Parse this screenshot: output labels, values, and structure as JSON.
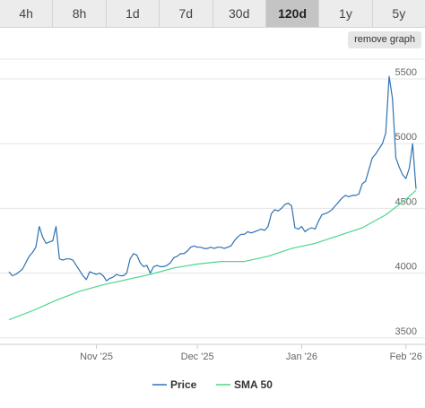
{
  "tabs": [
    {
      "label": "4h",
      "active": false
    },
    {
      "label": "8h",
      "active": false
    },
    {
      "label": "1d",
      "active": false
    },
    {
      "label": "7d",
      "active": false
    },
    {
      "label": "30d",
      "active": false
    },
    {
      "label": "120d",
      "active": true
    },
    {
      "label": "1y",
      "active": false
    },
    {
      "label": "5y",
      "active": false
    }
  ],
  "remove_graph_label": "remove graph",
  "colors": {
    "price": "#2f72b3",
    "sma": "#4cd68a",
    "grid": "#e6e6e6",
    "active_tab": "#c4c4c4"
  },
  "chart_data": {
    "type": "line",
    "title": "",
    "xlabel": "",
    "ylabel": "",
    "ylim": [
      3450,
      5680
    ],
    "xlim": [
      "2025-10-06",
      "2026-02-04"
    ],
    "yticks": [
      3500,
      4000,
      4500,
      5000,
      5500
    ],
    "ytick_labels": [
      "3500",
      "4000",
      "4500",
      "5000",
      "5500"
    ],
    "xticks": [
      "2025-11-01",
      "2025-12-01",
      "2026-01-01",
      "2026-02-01"
    ],
    "xtick_labels": [
      "Nov '25",
      "Dec '25",
      "Jan '26",
      "Feb '26"
    ],
    "grid": "horizontal",
    "legend_position": "bottom",
    "series": [
      {
        "name": "Price",
        "points": [
          [
            "2025-10-06",
            4010
          ],
          [
            "2025-10-07",
            3980
          ],
          [
            "2025-10-08",
            3990
          ],
          [
            "2025-10-09",
            4010
          ],
          [
            "2025-10-10",
            4030
          ],
          [
            "2025-10-11",
            4080
          ],
          [
            "2025-10-12",
            4130
          ],
          [
            "2025-10-13",
            4160
          ],
          [
            "2025-10-14",
            4200
          ],
          [
            "2025-10-15",
            4360
          ],
          [
            "2025-10-16",
            4280
          ],
          [
            "2025-10-17",
            4230
          ],
          [
            "2025-10-18",
            4240
          ],
          [
            "2025-10-19",
            4250
          ],
          [
            "2025-10-20",
            4360
          ],
          [
            "2025-10-21",
            4110
          ],
          [
            "2025-10-22",
            4100
          ],
          [
            "2025-10-23",
            4110
          ],
          [
            "2025-10-24",
            4110
          ],
          [
            "2025-10-25",
            4100
          ],
          [
            "2025-10-26",
            4060
          ],
          [
            "2025-10-27",
            4020
          ],
          [
            "2025-10-28",
            3980
          ],
          [
            "2025-10-29",
            3950
          ],
          [
            "2025-10-30",
            4010
          ],
          [
            "2025-10-31",
            4000
          ],
          [
            "2025-11-01",
            3990
          ],
          [
            "2025-11-02",
            4000
          ],
          [
            "2025-11-03",
            3980
          ],
          [
            "2025-11-04",
            3940
          ],
          [
            "2025-11-05",
            3960
          ],
          [
            "2025-11-06",
            3970
          ],
          [
            "2025-11-07",
            3990
          ],
          [
            "2025-11-08",
            3980
          ],
          [
            "2025-11-09",
            3980
          ],
          [
            "2025-11-10",
            4000
          ],
          [
            "2025-11-11",
            4110
          ],
          [
            "2025-11-12",
            4150
          ],
          [
            "2025-11-13",
            4140
          ],
          [
            "2025-11-14",
            4080
          ],
          [
            "2025-11-15",
            4050
          ],
          [
            "2025-11-16",
            4060
          ],
          [
            "2025-11-17",
            4000
          ],
          [
            "2025-11-18",
            4050
          ],
          [
            "2025-11-19",
            4060
          ],
          [
            "2025-11-20",
            4050
          ],
          [
            "2025-11-21",
            4050
          ],
          [
            "2025-11-22",
            4060
          ],
          [
            "2025-11-23",
            4080
          ],
          [
            "2025-11-24",
            4120
          ],
          [
            "2025-11-25",
            4130
          ],
          [
            "2025-11-26",
            4150
          ],
          [
            "2025-11-27",
            4150
          ],
          [
            "2025-11-28",
            4170
          ],
          [
            "2025-11-29",
            4200
          ],
          [
            "2025-11-30",
            4210
          ],
          [
            "2025-12-01",
            4200
          ],
          [
            "2025-12-02",
            4200
          ],
          [
            "2025-12-03",
            4190
          ],
          [
            "2025-12-04",
            4190
          ],
          [
            "2025-12-05",
            4200
          ],
          [
            "2025-12-06",
            4190
          ],
          [
            "2025-12-07",
            4200
          ],
          [
            "2025-12-08",
            4200
          ],
          [
            "2025-12-09",
            4190
          ],
          [
            "2025-12-10",
            4200
          ],
          [
            "2025-12-11",
            4210
          ],
          [
            "2025-12-12",
            4250
          ],
          [
            "2025-12-13",
            4280
          ],
          [
            "2025-12-14",
            4300
          ],
          [
            "2025-12-15",
            4300
          ],
          [
            "2025-12-16",
            4320
          ],
          [
            "2025-12-17",
            4310
          ],
          [
            "2025-12-18",
            4320
          ],
          [
            "2025-12-19",
            4330
          ],
          [
            "2025-12-20",
            4340
          ],
          [
            "2025-12-21",
            4330
          ],
          [
            "2025-12-22",
            4360
          ],
          [
            "2025-12-23",
            4460
          ],
          [
            "2025-12-24",
            4490
          ],
          [
            "2025-12-25",
            4480
          ],
          [
            "2025-12-26",
            4500
          ],
          [
            "2025-12-27",
            4530
          ],
          [
            "2025-12-28",
            4540
          ],
          [
            "2025-12-29",
            4520
          ],
          [
            "2025-12-30",
            4350
          ],
          [
            "2025-12-31",
            4340
          ],
          [
            "2026-01-01",
            4360
          ],
          [
            "2026-01-02",
            4320
          ],
          [
            "2026-01-03",
            4340
          ],
          [
            "2026-01-04",
            4350
          ],
          [
            "2026-01-05",
            4340
          ],
          [
            "2026-01-06",
            4400
          ],
          [
            "2026-01-07",
            4450
          ],
          [
            "2026-01-08",
            4460
          ],
          [
            "2026-01-09",
            4470
          ],
          [
            "2026-01-10",
            4490
          ],
          [
            "2026-01-11",
            4520
          ],
          [
            "2026-01-12",
            4550
          ],
          [
            "2026-01-13",
            4580
          ],
          [
            "2026-01-14",
            4600
          ],
          [
            "2026-01-15",
            4590
          ],
          [
            "2026-01-16",
            4600
          ],
          [
            "2026-01-17",
            4600
          ],
          [
            "2026-01-18",
            4610
          ],
          [
            "2026-01-19",
            4690
          ],
          [
            "2026-01-20",
            4710
          ],
          [
            "2026-01-21",
            4800
          ],
          [
            "2026-01-22",
            4890
          ],
          [
            "2026-01-23",
            4920
          ],
          [
            "2026-01-24",
            4960
          ],
          [
            "2026-01-25",
            5000
          ],
          [
            "2026-01-26",
            5080
          ],
          [
            "2026-01-27",
            5520
          ],
          [
            "2026-01-28",
            5350
          ],
          [
            "2026-01-29",
            4890
          ],
          [
            "2026-01-30",
            4820
          ],
          [
            "2026-01-31",
            4760
          ],
          [
            "2026-02-01",
            4730
          ],
          [
            "2026-02-02",
            4810
          ],
          [
            "2026-02-03",
            5000
          ],
          [
            "2026-02-04",
            4650
          ]
        ]
      },
      {
        "name": "SMA 50",
        "points": [
          [
            "2025-10-06",
            3640
          ],
          [
            "2025-10-13",
            3710
          ],
          [
            "2025-10-20",
            3790
          ],
          [
            "2025-10-27",
            3860
          ],
          [
            "2025-11-03",
            3910
          ],
          [
            "2025-11-10",
            3950
          ],
          [
            "2025-11-17",
            3990
          ],
          [
            "2025-11-24",
            4040
          ],
          [
            "2025-12-01",
            4070
          ],
          [
            "2025-12-08",
            4090
          ],
          [
            "2025-12-15",
            4090
          ],
          [
            "2025-12-22",
            4130
          ],
          [
            "2025-12-29",
            4190
          ],
          [
            "2026-01-05",
            4230
          ],
          [
            "2026-01-12",
            4290
          ],
          [
            "2026-01-19",
            4350
          ],
          [
            "2026-01-26",
            4450
          ],
          [
            "2026-02-01",
            4570
          ],
          [
            "2026-02-04",
            4640
          ]
        ]
      }
    ]
  }
}
